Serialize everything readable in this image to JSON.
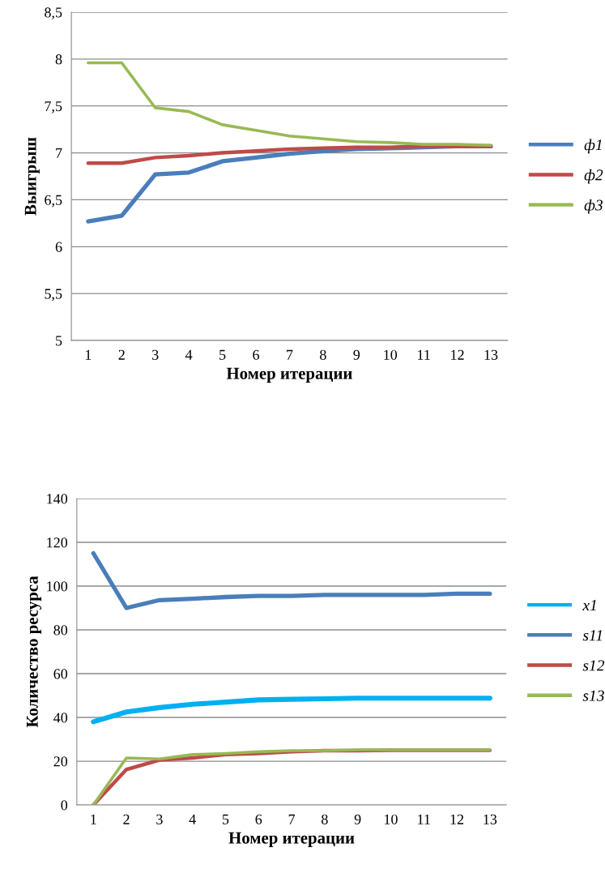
{
  "chart_data": [
    {
      "type": "line",
      "xlabel": "Номер итерации",
      "ylabel": "Выигрыш",
      "categories": [
        "1",
        "2",
        "3",
        "4",
        "5",
        "6",
        "7",
        "8",
        "9",
        "10",
        "11",
        "12",
        "13"
      ],
      "series": [
        {
          "name": "ф1",
          "color": "#4a7ebb",
          "values": [
            6.27,
            6.33,
            6.77,
            6.79,
            6.91,
            6.95,
            6.99,
            7.02,
            7.04,
            7.05,
            7.06,
            7.07,
            7.07
          ]
        },
        {
          "name": "ф2",
          "color": "#be4b48",
          "values": [
            6.89,
            6.89,
            6.95,
            6.97,
            7.0,
            7.02,
            7.04,
            7.05,
            7.06,
            7.06,
            7.07,
            7.07,
            7.07
          ]
        },
        {
          "name": "ф3",
          "color": "#98b954",
          "values": [
            7.96,
            7.96,
            7.48,
            7.44,
            7.3,
            7.24,
            7.18,
            7.15,
            7.12,
            7.11,
            7.09,
            7.09,
            7.08
          ]
        }
      ],
      "ylim": [
        5,
        8.5
      ],
      "yticks": [
        5,
        {
          "value": 5.5,
          "label": "5,5"
        },
        6,
        {
          "value": 6.5,
          "label": "6,5"
        },
        7,
        {
          "value": 7.5,
          "label": "7,5"
        },
        8,
        {
          "value": 8.5,
          "label": "8,5"
        }
      ],
      "grid": "y",
      "legend": "right",
      "marker": "none",
      "line_style": "solid"
    },
    {
      "type": "line",
      "xlabel": "Номер итерации",
      "ylabel": "Количество ресурса",
      "categories": [
        "1",
        "2",
        "3",
        "4",
        "5",
        "6",
        "7",
        "8",
        "9",
        "10",
        "11",
        "12",
        "13"
      ],
      "series": [
        {
          "name": "x1",
          "color": "#00b0f0",
          "values": [
            38,
            42.5,
            44.5,
            46,
            47,
            48,
            48.3,
            48.5,
            48.8,
            48.8,
            48.8,
            48.8,
            48.8
          ]
        },
        {
          "name": "s11",
          "color": "#4a7ebb",
          "values": [
            115,
            90,
            93.6,
            94.2,
            95,
            95.5,
            95.5,
            96,
            96,
            96,
            96,
            96.5,
            96.5
          ]
        },
        {
          "name": "s12",
          "color": "#be4b48",
          "values": [
            0,
            16.2,
            20.5,
            21.5,
            23,
            23.5,
            24.3,
            24.8,
            24.8,
            25,
            25,
            25,
            25
          ]
        },
        {
          "name": "s13",
          "color": "#98b954",
          "values": [
            0,
            21.5,
            21,
            23,
            23.5,
            24.3,
            24.8,
            24.8,
            25.2,
            25.2,
            25.2,
            25.2,
            25.2
          ]
        }
      ],
      "ylim": [
        0,
        140
      ],
      "yticks": [
        0,
        20,
        40,
        60,
        80,
        100,
        120,
        140
      ],
      "grid": "y",
      "legend": "right",
      "marker": "none",
      "line_style": "solid"
    }
  ]
}
